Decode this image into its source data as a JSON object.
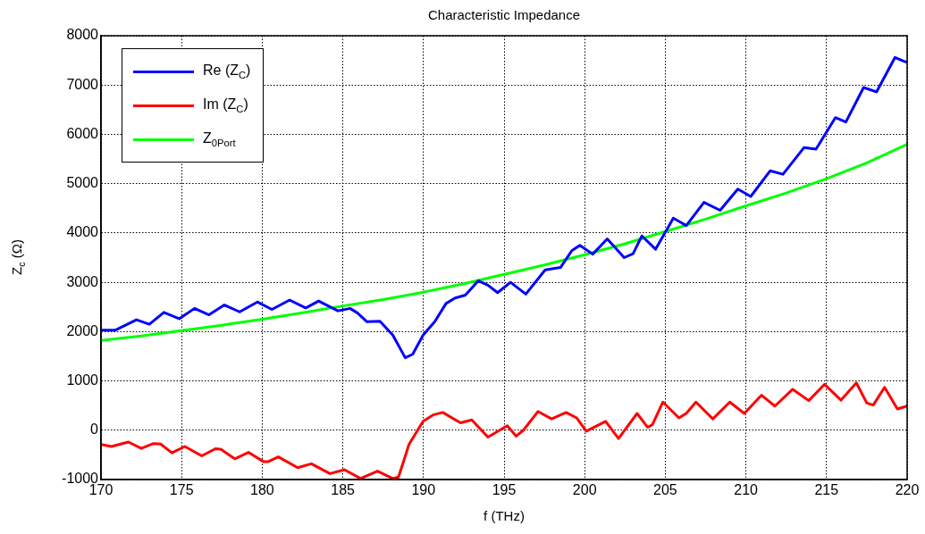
{
  "chart_data": {
    "type": "line",
    "title": "Characteristic Impedance",
    "xlabel": "f (THz)",
    "ylabel": "Z$_{c}$ (Ω)",
    "xlim": [
      170,
      220
    ],
    "xticks": [
      170,
      175,
      180,
      185,
      190,
      195,
      200,
      205,
      210,
      215,
      220
    ],
    "ylim": [
      -1000,
      8000
    ],
    "yticks": [
      -1000,
      0,
      1000,
      2000,
      3000,
      4000,
      5000,
      6000,
      7000,
      8000
    ],
    "grid": true,
    "legend": "top left",
    "marker": "none",
    "line_style": "solid",
    "series": [
      {
        "name": "Re (Z$_{C}$)",
        "color": "#0000ff",
        "x": [
          170,
          170.9,
          172.2,
          173,
          173.9,
          174.85,
          175.8,
          176.7,
          177.65,
          178.6,
          179.7,
          180.6,
          181.7,
          182.7,
          183.5,
          184.7,
          185.45,
          185.9,
          186.5,
          187.3,
          188.1,
          188.87,
          189.33,
          189.98,
          190.7,
          191.4,
          191.96,
          192.6,
          193.4,
          194,
          194.6,
          195.4,
          196.35,
          197.55,
          198.5,
          199.2,
          199.7,
          200.5,
          201.4,
          202.45,
          203,
          203.55,
          204.4,
          205.5,
          206.3,
          207.4,
          208.4,
          209.5,
          210.3,
          211.5,
          212.3,
          213.6,
          214.35,
          215.55,
          216.2,
          217.3,
          218.1,
          219.25,
          219.9,
          220
        ],
        "values": [
          2030,
          2030,
          2240,
          2150,
          2390,
          2260,
          2470,
          2340,
          2540,
          2400,
          2600,
          2450,
          2640,
          2480,
          2620,
          2420,
          2470,
          2380,
          2200,
          2210,
          1930,
          1470,
          1540,
          1930,
          2200,
          2570,
          2680,
          2740,
          3030,
          2940,
          2790,
          3000,
          2760,
          3250,
          3300,
          3640,
          3750,
          3570,
          3880,
          3500,
          3580,
          3940,
          3670,
          4300,
          4150,
          4620,
          4460,
          4890,
          4740,
          5260,
          5190,
          5730,
          5700,
          6340,
          6250,
          6950,
          6860,
          7560,
          7470,
          7470
        ]
      },
      {
        "name": "Im (Z$_{C}$)",
        "color": "#ff0000",
        "x": [
          170,
          170.65,
          171.7,
          172.5,
          173.26,
          173.7,
          174.4,
          175.2,
          176.25,
          177.1,
          177.45,
          178.3,
          179.15,
          180.1,
          180.35,
          181,
          182.2,
          183.05,
          184.2,
          185.1,
          186.1,
          187.15,
          188.1,
          188.45,
          188.8,
          189.1,
          189.98,
          190.6,
          191.2,
          192.3,
          193,
          194,
          195.2,
          195.75,
          196.2,
          197.1,
          197.95,
          198.85,
          199.5,
          200.1,
          201.3,
          202.1,
          203.25,
          203.9,
          204.2,
          204.85,
          205.85,
          206.3,
          206.9,
          207.95,
          209,
          209.9,
          210.97,
          211.8,
          212.9,
          213.9,
          214.87,
          215.9,
          216.85,
          217.5,
          217.9,
          218.6,
          219.4,
          219.9,
          220
        ],
        "values": [
          -290,
          -330,
          -240,
          -370,
          -270,
          -280,
          -460,
          -330,
          -520,
          -375,
          -390,
          -580,
          -450,
          -640,
          -640,
          -540,
          -760,
          -680,
          -880,
          -800,
          -980,
          -830,
          -980,
          -950,
          -600,
          -290,
          180,
          310,
          360,
          150,
          210,
          -140,
          90,
          -120,
          0,
          380,
          230,
          360,
          250,
          -20,
          180,
          -170,
          340,
          60,
          110,
          570,
          250,
          340,
          570,
          230,
          570,
          340,
          710,
          490,
          830,
          600,
          930,
          610,
          960,
          550,
          510,
          870,
          430,
          480,
          490
        ]
      },
      {
        "name": "Z$_{0}$$_{Port}$",
        "color": "#00ff00",
        "x": [
          170,
          172.5,
          175,
          177.5,
          180,
          182.5,
          185,
          187.5,
          190,
          192.5,
          195,
          197.5,
          200,
          202.5,
          205,
          207.5,
          210,
          212.5,
          215,
          217.5,
          220
        ],
        "values": [
          1820,
          1910,
          2020,
          2130,
          2250,
          2380,
          2520,
          2650,
          2800,
          2970,
          3160,
          3350,
          3560,
          3780,
          4030,
          4280,
          4550,
          4810,
          5100,
          5420,
          5800
        ]
      }
    ]
  }
}
